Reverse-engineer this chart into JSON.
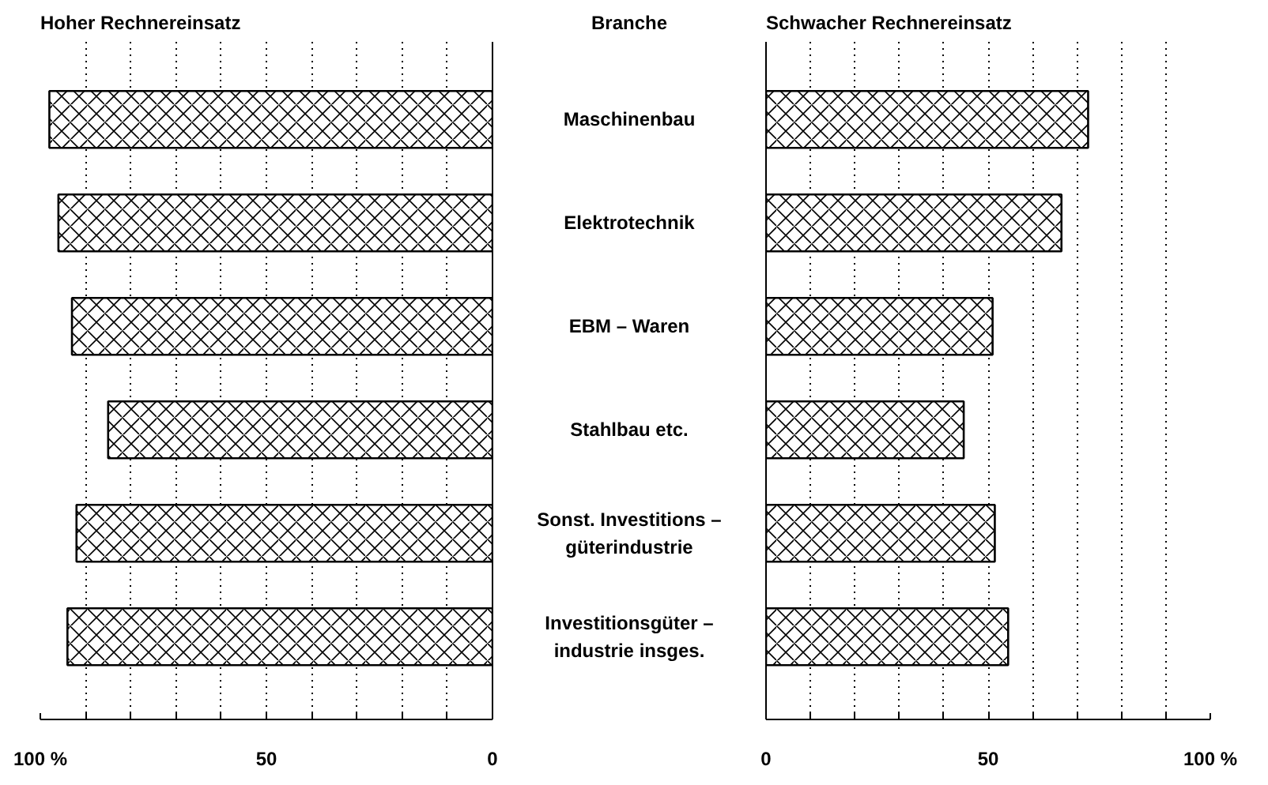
{
  "chart_data": [
    {
      "type": "bar",
      "orientation": "horizontal",
      "title": "Hoher Rechnereinsatz",
      "ylabel": "Branche",
      "categories": [
        "Maschinenbau",
        "Elektrotechnik",
        "EBM – Waren",
        "Stahlbau etc.",
        "Sonst. Investitions –\ngüterindustrie",
        "Investitionsgüter –\nindustrie insges."
      ],
      "values": [
        98,
        96,
        93,
        85,
        92,
        94
      ],
      "color": "#000000",
      "xlim": [
        100,
        0
      ],
      "xticks": [
        {
          "value": 100,
          "label": "100 %"
        },
        {
          "value": 90,
          "label": null
        },
        {
          "value": 80,
          "label": null
        },
        {
          "value": 70,
          "label": null
        },
        {
          "value": 60,
          "label": null
        },
        50,
        {
          "value": 40,
          "label": null
        },
        {
          "value": 30,
          "label": null
        },
        {
          "value": 20,
          "label": null
        },
        {
          "value": 10,
          "label": null
        },
        0
      ],
      "grid": "x"
    },
    {
      "type": "bar",
      "orientation": "horizontal",
      "title": "Schwacher Rechnereinsatz",
      "values": [
        72.5,
        66.5,
        51,
        44.5,
        51.5,
        54.5
      ],
      "color": "#000000",
      "xlim": [
        0,
        100
      ],
      "xticks": [
        0,
        {
          "value": 10,
          "label": null
        },
        {
          "value": 20,
          "label": null
        },
        {
          "value": 30,
          "label": null
        },
        {
          "value": 40,
          "label": null
        },
        50,
        {
          "value": 60,
          "label": null
        },
        {
          "value": 70,
          "label": null
        },
        {
          "value": 80,
          "label": null
        },
        {
          "value": 90,
          "label": null
        },
        {
          "value": 100,
          "label": "100 %"
        }
      ],
      "grid": "x"
    }
  ]
}
